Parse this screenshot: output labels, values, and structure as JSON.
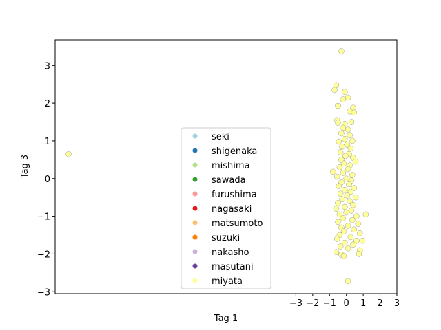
{
  "chart_data": {
    "type": "scatter",
    "xlabel": "Tag 1",
    "ylabel": "Tag 3",
    "xlim": [
      -17.3,
      3.0
    ],
    "ylim": [
      -3.05,
      3.68
    ],
    "x_ticks": [
      -3,
      -2,
      -1,
      0,
      1,
      2,
      3
    ],
    "x_tick_labels": [
      "−3",
      "−2",
      "−1",
      "0",
      "1",
      "2",
      "3"
    ],
    "y_ticks": [
      -3,
      -2,
      -1,
      0,
      1,
      2,
      3
    ],
    "y_tick_labels": [
      "−3",
      "−2",
      "−1",
      "0",
      "1",
      "2",
      "3"
    ],
    "grid": false,
    "legend_position": "center",
    "series": [
      {
        "name": "seki",
        "color": "#a6cee3",
        "points": []
      },
      {
        "name": "shigenaka",
        "color": "#1f78b4",
        "points": []
      },
      {
        "name": "mishima",
        "color": "#b2df8a",
        "points": []
      },
      {
        "name": "sawada",
        "color": "#33a02c",
        "points": []
      },
      {
        "name": "furushima",
        "color": "#fb9a99",
        "points": []
      },
      {
        "name": "nagasaki",
        "color": "#e31a1c",
        "points": []
      },
      {
        "name": "matsumoto",
        "color": "#fdbf6f",
        "points": []
      },
      {
        "name": "suzuki",
        "color": "#ff7f00",
        "points": []
      },
      {
        "name": "nakasho",
        "color": "#cab2d6",
        "points": []
      },
      {
        "name": "masutani",
        "color": "#6a3d9a",
        "points": []
      },
      {
        "name": "miyata",
        "color": "#ffff99",
        "points": [
          [
            -16.5,
            0.65
          ],
          [
            -0.3,
            3.38
          ],
          [
            -0.6,
            2.48
          ],
          [
            -0.7,
            2.35
          ],
          [
            -0.1,
            2.3
          ],
          [
            0.1,
            2.15
          ],
          [
            -0.2,
            2.1
          ],
          [
            -0.5,
            1.93
          ],
          [
            0.4,
            1.88
          ],
          [
            0.2,
            1.78
          ],
          [
            0.45,
            1.75
          ],
          [
            -0.55,
            1.55
          ],
          [
            -0.5,
            1.48
          ],
          [
            -0.1,
            1.45
          ],
          [
            0.3,
            1.5
          ],
          [
            -0.2,
            1.35
          ],
          [
            0.1,
            1.3
          ],
          [
            -0.3,
            1.2
          ],
          [
            0.2,
            1.15
          ],
          [
            -0.1,
            1.05
          ],
          [
            0.35,
            1.0
          ],
          [
            -0.45,
            0.98
          ],
          [
            0.05,
            0.9
          ],
          [
            -0.25,
            0.85
          ],
          [
            0.25,
            0.8
          ],
          [
            -0.35,
            0.7
          ],
          [
            0.15,
            0.65
          ],
          [
            -0.05,
            0.6
          ],
          [
            0.4,
            0.55
          ],
          [
            -0.3,
            0.5
          ],
          [
            0.55,
            0.45
          ],
          [
            -0.15,
            0.4
          ],
          [
            0.2,
            0.35
          ],
          [
            -0.4,
            0.3
          ],
          [
            0.1,
            0.25
          ],
          [
            -0.8,
            0.18
          ],
          [
            -0.2,
            0.15
          ],
          [
            0.35,
            0.1
          ],
          [
            -0.55,
            0.05
          ],
          [
            0.0,
            0.0
          ],
          [
            0.3,
            -0.05
          ],
          [
            -0.3,
            -0.1
          ],
          [
            0.15,
            -0.15
          ],
          [
            -0.45,
            -0.2
          ],
          [
            0.45,
            -0.25
          ],
          [
            -0.1,
            -0.3
          ],
          [
            0.25,
            -0.35
          ],
          [
            -0.35,
            -0.4
          ],
          [
            0.05,
            -0.45
          ],
          [
            0.55,
            -0.5
          ],
          [
            -0.25,
            -0.55
          ],
          [
            0.2,
            -0.6
          ],
          [
            -0.5,
            -0.65
          ],
          [
            0.4,
            -0.7
          ],
          [
            -0.1,
            -0.75
          ],
          [
            -0.6,
            -0.8
          ],
          [
            0.3,
            -0.85
          ],
          [
            0.0,
            -0.9
          ],
          [
            1.15,
            -0.95
          ],
          [
            -0.4,
            -0.95
          ],
          [
            0.6,
            -1.0
          ],
          [
            -0.2,
            -1.05
          ],
          [
            0.35,
            -1.1
          ],
          [
            -0.5,
            -1.15
          ],
          [
            0.7,
            -1.2
          ],
          [
            0.1,
            -1.25
          ],
          [
            -0.3,
            -1.3
          ],
          [
            0.45,
            -1.35
          ],
          [
            -0.15,
            -1.4
          ],
          [
            0.8,
            -1.45
          ],
          [
            -0.4,
            -1.5
          ],
          [
            0.25,
            -1.55
          ],
          [
            -0.55,
            -1.6
          ],
          [
            0.6,
            -1.65
          ],
          [
            0.95,
            -1.65
          ],
          [
            -0.1,
            -1.7
          ],
          [
            0.4,
            -1.75
          ],
          [
            -0.35,
            -1.8
          ],
          [
            0.1,
            -1.85
          ],
          [
            0.8,
            -1.9
          ],
          [
            -0.6,
            -1.95
          ],
          [
            0.75,
            -2.0
          ],
          [
            -0.3,
            -2.02
          ],
          [
            -0.15,
            -2.05
          ],
          [
            0.1,
            -2.72
          ]
        ]
      }
    ]
  }
}
